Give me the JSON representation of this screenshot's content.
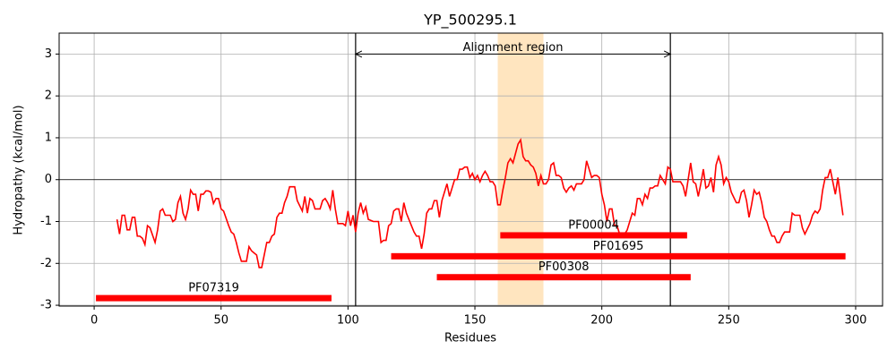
{
  "chart_data": {
    "type": "line",
    "title": "YP_500295.1",
    "xlabel": "Residues",
    "ylabel": "Hydropathy (kcal/mol)",
    "color": "#ff0000",
    "x": [
      9,
      10,
      11,
      12,
      13,
      14,
      15,
      16,
      17,
      18,
      19,
      20,
      21,
      22,
      24,
      25,
      26,
      27,
      28,
      29,
      30,
      31,
      32,
      33,
      34,
      35,
      36,
      37,
      38,
      39,
      40,
      41,
      42,
      43,
      44,
      45,
      46,
      47,
      48,
      49,
      50,
      51,
      53,
      54,
      55,
      56,
      57,
      58,
      59,
      60,
      61,
      62,
      63,
      64,
      65,
      66,
      67,
      68,
      69,
      70,
      71,
      72,
      73,
      74,
      75,
      76,
      77,
      78,
      79,
      80,
      82,
      83,
      84,
      85,
      86,
      87,
      88,
      89,
      90,
      91,
      92,
      93,
      94,
      95,
      96,
      97,
      98,
      99,
      100,
      101,
      102,
      103,
      104,
      105,
      106,
      107,
      108,
      110,
      111,
      112,
      113,
      114,
      115,
      116,
      117,
      118,
      119,
      120,
      121,
      122,
      123,
      124,
      125,
      126,
      127,
      128,
      129,
      130,
      131,
      132,
      133,
      134,
      135,
      136,
      137,
      139,
      140,
      141,
      142,
      143,
      144,
      145,
      146,
      147,
      148,
      149,
      150,
      151,
      152,
      153,
      154,
      155,
      156,
      157,
      158,
      159,
      160,
      161,
      162,
      163,
      164,
      165,
      167,
      168,
      169,
      170,
      171,
      172,
      173,
      174,
      175,
      176,
      177,
      178,
      179,
      180,
      181,
      182,
      183,
      184,
      185,
      186,
      187,
      188,
      189,
      190,
      191,
      192,
      193,
      194,
      196,
      197,
      198,
      199,
      200,
      201,
      202,
      203,
      204,
      205,
      206,
      207,
      208,
      209,
      210,
      211,
      212,
      213,
      214,
      215,
      216,
      217,
      218,
      219,
      220,
      221,
      222,
      223,
      225,
      226,
      227,
      228,
      229,
      230,
      231,
      232,
      233,
      234,
      235,
      236,
      237,
      238,
      239,
      240,
      241,
      242,
      243,
      244,
      245,
      246,
      247,
      248,
      249,
      250,
      251,
      253,
      254,
      255,
      256,
      257,
      258,
      259,
      260,
      261,
      262,
      263,
      264,
      265,
      266,
      267,
      268,
      269,
      270,
      271,
      272,
      273,
      274,
      275,
      276,
      277,
      278,
      279,
      280,
      282,
      283,
      284,
      285,
      286,
      287,
      288,
      289,
      290,
      291,
      292,
      293,
      294,
      295
    ],
    "values": [
      -0.95,
      -1.3,
      -0.85,
      -0.85,
      -1.2,
      -1.2,
      -0.9,
      -0.9,
      -1.35,
      -1.35,
      -1.4,
      -1.55,
      -1.1,
      -1.15,
      -1.5,
      -1.2,
      -0.75,
      -0.7,
      -0.85,
      -0.85,
      -0.85,
      -1.0,
      -0.95,
      -0.55,
      -0.4,
      -0.8,
      -0.95,
      -0.7,
      -0.25,
      -0.35,
      -0.35,
      -0.75,
      -0.35,
      -0.35,
      -0.27,
      -0.27,
      -0.3,
      -0.57,
      -0.45,
      -0.45,
      -0.7,
      -0.75,
      -1.1,
      -1.25,
      -1.3,
      -1.5,
      -1.75,
      -1.95,
      -1.95,
      -1.95,
      -1.6,
      -1.7,
      -1.75,
      -1.8,
      -2.1,
      -2.1,
      -1.8,
      -1.5,
      -1.5,
      -1.35,
      -1.3,
      -0.9,
      -0.8,
      -0.8,
      -0.55,
      -0.4,
      -0.17,
      -0.17,
      -0.17,
      -0.5,
      -0.75,
      -0.4,
      -0.8,
      -0.45,
      -0.5,
      -0.7,
      -0.7,
      -0.7,
      -0.5,
      -0.45,
      -0.55,
      -0.7,
      -0.25,
      -0.7,
      -1.05,
      -1.05,
      -1.05,
      -1.1,
      -0.75,
      -1.1,
      -0.85,
      -1.25,
      -0.8,
      -0.55,
      -0.8,
      -0.65,
      -0.95,
      -1.0,
      -1.0,
      -1.0,
      -1.5,
      -1.45,
      -1.45,
      -1.1,
      -1.05,
      -0.75,
      -0.7,
      -0.7,
      -1.0,
      -0.55,
      -0.8,
      -0.95,
      -1.1,
      -1.25,
      -1.35,
      -1.35,
      -1.65,
      -1.3,
      -0.8,
      -0.7,
      -0.7,
      -0.5,
      -0.5,
      -0.9,
      -0.5,
      -0.1,
      -0.4,
      -0.2,
      0.0,
      0.0,
      0.25,
      0.25,
      0.3,
      0.3,
      0.05,
      0.15,
      0.0,
      0.1,
      -0.05,
      0.1,
      0.2,
      0.1,
      -0.05,
      -0.05,
      -0.15,
      -0.6,
      -0.6,
      -0.25,
      0.05,
      0.4,
      0.5,
      0.4,
      0.85,
      0.95,
      0.55,
      0.45,
      0.45,
      0.35,
      0.3,
      0.15,
      -0.15,
      0.1,
      -0.1,
      -0.1,
      0.0,
      0.35,
      0.4,
      0.1,
      0.1,
      0.05,
      -0.2,
      -0.3,
      -0.2,
      -0.15,
      -0.25,
      -0.1,
      -0.1,
      -0.1,
      0.0,
      0.45,
      0.05,
      0.1,
      0.1,
      0.05,
      -0.35,
      -0.6,
      -1.0,
      -0.7,
      -0.7,
      -1.1,
      -1.1,
      -1.3,
      -1.3,
      -1.3,
      -1.2,
      -1.0,
      -0.8,
      -0.85,
      -0.45,
      -0.45,
      -0.6,
      -0.35,
      -0.45,
      -0.2,
      -0.2,
      -0.15,
      -0.15,
      0.1,
      -0.1,
      0.3,
      0.25,
      -0.05,
      -0.05,
      -0.05,
      -0.05,
      -0.15,
      -0.4,
      0.0,
      0.4,
      -0.05,
      -0.1,
      -0.4,
      -0.1,
      0.25,
      -0.2,
      -0.15,
      0.05,
      -0.3,
      0.35,
      0.55,
      0.35,
      -0.1,
      0.05,
      -0.05,
      -0.3,
      -0.55,
      -0.55,
      -0.3,
      -0.25,
      -0.5,
      -0.9,
      -0.6,
      -0.25,
      -0.35,
      -0.3,
      -0.55,
      -0.9,
      -1.0,
      -1.2,
      -1.35,
      -1.35,
      -1.5,
      -1.5,
      -1.35,
      -1.25,
      -1.25,
      -1.25,
      -0.8,
      -0.85,
      -0.85,
      -0.85,
      -1.15,
      -1.3,
      -1.05,
      -0.85,
      -0.75,
      -0.8,
      -0.7,
      -0.25,
      0.05,
      0.05,
      0.25,
      -0.05,
      -0.35,
      0.05,
      -0.4,
      -0.85
    ],
    "xlim": [
      -13.8,
      310.6
    ],
    "ylim": [
      -3.02,
      3.5
    ],
    "xticks": [
      0,
      50,
      100,
      150,
      200,
      250,
      300
    ],
    "yticks": [
      -3,
      -2,
      -1,
      0,
      1,
      2,
      3
    ],
    "grid": true,
    "hline": 0,
    "vlines": [
      103,
      227
    ],
    "span": [
      159,
      177
    ],
    "span_color": "#ffe5bf",
    "annotation": {
      "text": "Alignment region",
      "start": 103,
      "end": 227,
      "y": 3
    },
    "domain_color": "#ff0000",
    "domains": [
      {
        "name": "PF07319",
        "start": 0.7,
        "end": 93.5,
        "y": -2.83
      },
      {
        "name": "PF00004",
        "start": 160,
        "end": 233.6,
        "y": -1.33
      },
      {
        "name": "PF01695",
        "start": 117,
        "end": 296,
        "y": -1.83
      },
      {
        "name": "PF00308",
        "start": 135,
        "end": 235,
        "y": -2.33
      }
    ]
  }
}
